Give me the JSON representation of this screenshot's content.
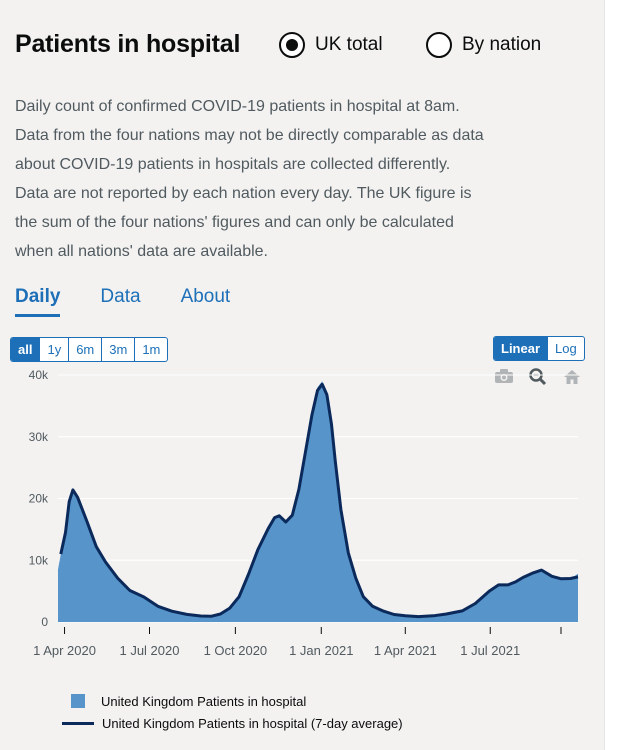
{
  "header": {
    "title": "Patients in hospital"
  },
  "radios": [
    {
      "label": "UK total",
      "checked": true
    },
    {
      "label": "By nation",
      "checked": false
    }
  ],
  "description": [
    "Daily count of confirmed COVID-19 patients in hospital at 8am.",
    "Data from the four nations may not be directly comparable as data",
    "about COVID-19 patients in hospitals are collected differently.",
    "Data are not reported by each nation every day. The UK figure is",
    "the sum of the four nations' figures and can only be calculated",
    "when all nations' data are available."
  ],
  "tabs": [
    {
      "label": "Daily",
      "active": true
    },
    {
      "label": "Data",
      "active": false
    },
    {
      "label": "About",
      "active": false
    }
  ],
  "range_buttons": [
    "all",
    "1y",
    "6m",
    "3m",
    "1m"
  ],
  "scale_buttons": [
    "Linear",
    "Log"
  ],
  "modebar_icons": [
    "camera-icon",
    "zoom-icon",
    "home-icon"
  ],
  "colors": {
    "fill": "#5694ca",
    "line": "#0b2a5b",
    "accent": "#1d70b8"
  },
  "chart_data": {
    "type": "area",
    "title": "",
    "xlabel": "",
    "ylabel": "",
    "ylim": [
      0,
      40000
    ],
    "yticks": [
      0,
      10000,
      20000,
      30000,
      40000
    ],
    "ytick_labels": [
      "0",
      "10k",
      "20k",
      "30k",
      "40k"
    ],
    "xtick_dates": [
      "2020-04-01",
      "2020-07-01",
      "2020-10-01",
      "2021-01-01",
      "2021-04-01",
      "2021-07-01"
    ],
    "xtick_labels": [
      "1 Apr 2020",
      "1 Jul 2020",
      "1 Oct 2020",
      "1 Jan 2021",
      "1 Apr 2021",
      "1 Jul 2021"
    ],
    "x_range": [
      "2020-03-25",
      "2021-10-03"
    ],
    "x": [
      "2020-03-25",
      "2020-03-28",
      "2020-04-02",
      "2020-04-06",
      "2020-04-10",
      "2020-04-15",
      "2020-04-25",
      "2020-05-05",
      "2020-05-15",
      "2020-05-28",
      "2020-06-10",
      "2020-06-25",
      "2020-07-10",
      "2020-07-25",
      "2020-08-10",
      "2020-08-25",
      "2020-09-05",
      "2020-09-15",
      "2020-09-25",
      "2020-10-05",
      "2020-10-15",
      "2020-10-25",
      "2020-11-05",
      "2020-11-12",
      "2020-11-17",
      "2020-11-24",
      "2020-12-01",
      "2020-12-08",
      "2020-12-15",
      "2020-12-22",
      "2020-12-28",
      "2021-01-02",
      "2021-01-07",
      "2021-01-12",
      "2021-01-16",
      "2021-01-22",
      "2021-01-30",
      "2021-02-07",
      "2021-02-15",
      "2021-02-25",
      "2021-03-08",
      "2021-03-20",
      "2021-04-01",
      "2021-04-15",
      "2021-05-01",
      "2021-05-15",
      "2021-06-01",
      "2021-06-15",
      "2021-06-30",
      "2021-07-10",
      "2021-07-20",
      "2021-07-28",
      "2021-08-05",
      "2021-08-15",
      "2021-08-25",
      "2021-09-05",
      "2021-09-15",
      "2021-09-25",
      "2021-10-03"
    ],
    "series": [
      {
        "name": "United Kingdom Patients in hospital",
        "style": "area",
        "values": [
          8500,
          11000,
          14000,
          19000,
          21000,
          20000,
          16000,
          12000,
          9500,
          7000,
          5000,
          4000,
          2500,
          1700,
          1200,
          950,
          900,
          1300,
          2200,
          4000,
          7500,
          11500,
          15000,
          17000,
          17300,
          16000,
          17500,
          22000,
          28000,
          34000,
          38000,
          39000,
          37000,
          32000,
          26000,
          18000,
          11000,
          7000,
          4000,
          2500,
          1800,
          1200,
          1000,
          850,
          1000,
          1300,
          1800,
          3000,
          5000,
          6000,
          6000,
          6500,
          7200,
          7900,
          8500,
          7300,
          6900,
          7000,
          7800
        ]
      },
      {
        "name": "United Kingdom Patients in hospital (7-day average)",
        "style": "line",
        "values": [
          null,
          11000,
          14500,
          19500,
          21400,
          20200,
          16300,
          12200,
          9700,
          7100,
          5100,
          4050,
          2550,
          1750,
          1230,
          970,
          920,
          1300,
          2250,
          4100,
          7700,
          11700,
          15100,
          16900,
          17200,
          16200,
          17300,
          21500,
          27500,
          33500,
          37500,
          38500,
          36800,
          32000,
          26000,
          18200,
          11200,
          7100,
          4100,
          2550,
          1800,
          1220,
          1000,
          870,
          1000,
          1300,
          1800,
          3000,
          5000,
          6000,
          6000,
          6500,
          7200,
          7900,
          8400,
          7400,
          7000,
          7050,
          7300
        ]
      }
    ],
    "legend": [
      "United Kingdom Patients in hospital",
      "United Kingdom Patients in hospital (7-day average)"
    ],
    "legend_position": "bottom-left"
  }
}
